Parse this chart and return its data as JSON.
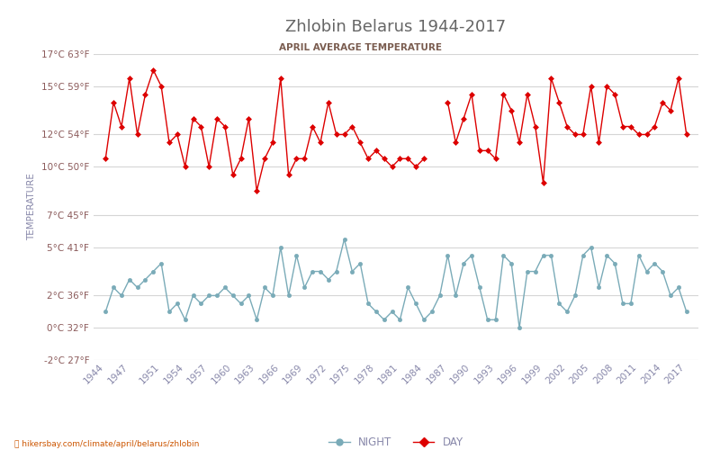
{
  "title": "Zhlobin Belarus 1944-2017",
  "subtitle": "APRIL AVERAGE TEMPERATURE",
  "ylabel": "TEMPERATURE",
  "footer": "hikersbay.com/climate/april/belarus/zhlobin",
  "years": [
    1944,
    1945,
    1946,
    1947,
    1948,
    1949,
    1950,
    1951,
    1952,
    1953,
    1954,
    1955,
    1956,
    1957,
    1958,
    1959,
    1960,
    1961,
    1962,
    1963,
    1964,
    1965,
    1966,
    1967,
    1968,
    1969,
    1970,
    1971,
    1972,
    1973,
    1974,
    1975,
    1976,
    1977,
    1978,
    1979,
    1980,
    1981,
    1982,
    1983,
    1984,
    1985,
    1986,
    1987,
    1988,
    1989,
    1990,
    1991,
    1992,
    1993,
    1994,
    1995,
    1996,
    1997,
    1998,
    1999,
    2000,
    2001,
    2002,
    2003,
    2004,
    2005,
    2006,
    2007,
    2008,
    2009,
    2010,
    2011,
    2012,
    2013,
    2014,
    2015,
    2016,
    2017
  ],
  "day": [
    10.5,
    14.0,
    12.5,
    15.5,
    12.0,
    14.5,
    16.0,
    15.0,
    11.5,
    12.0,
    10.0,
    13.0,
    12.5,
    10.0,
    13.0,
    12.5,
    9.5,
    10.5,
    13.0,
    8.5,
    10.5,
    11.5,
    15.5,
    9.5,
    10.5,
    10.5,
    12.5,
    11.5,
    14.0,
    12.0,
    12.0,
    12.5,
    11.5,
    10.5,
    11.0,
    10.5,
    10.0,
    10.5,
    10.5,
    10.0,
    10.5,
    null,
    null,
    14.0,
    11.5,
    13.0,
    14.5,
    11.0,
    11.0,
    10.5,
    14.5,
    13.5,
    11.5,
    14.5,
    12.5,
    9.0,
    15.5,
    14.0,
    12.5,
    12.0,
    12.0,
    15.0,
    11.5,
    15.0,
    14.5,
    12.5,
    12.5,
    12.0,
    12.0,
    12.5,
    14.0,
    13.5,
    15.5,
    12.0
  ],
  "night": [
    1.0,
    2.5,
    2.0,
    3.0,
    2.5,
    3.0,
    3.5,
    4.0,
    1.0,
    1.5,
    0.5,
    2.0,
    1.5,
    2.0,
    2.0,
    2.5,
    2.0,
    1.5,
    2.0,
    0.5,
    2.5,
    2.0,
    5.0,
    2.0,
    4.5,
    2.5,
    3.5,
    3.5,
    3.0,
    3.5,
    5.5,
    3.5,
    4.0,
    1.5,
    1.0,
    0.5,
    1.0,
    0.5,
    2.5,
    1.5,
    0.5,
    1.0,
    2.0,
    4.5,
    2.0,
    4.0,
    4.5,
    2.5,
    0.5,
    0.5,
    4.5,
    4.0,
    0.0,
    3.5,
    3.5,
    4.5,
    4.5,
    1.5,
    1.0,
    2.0,
    4.5,
    5.0,
    2.5,
    4.5,
    4.0,
    1.5,
    1.5,
    4.5,
    3.5,
    4.0,
    3.5,
    2.0,
    2.5,
    1.0
  ],
  "day_color": "#dd0000",
  "night_color": "#7aabb8",
  "title_color": "#666666",
  "subtitle_color": "#7a5c4f",
  "axis_label_color": "#8888aa",
  "tick_color": "#8B5a5a",
  "grid_color": "#d5d5d5",
  "background_color": "#ffffff",
  "ylim_min": -2,
  "ylim_max": 17,
  "yticks_c": [
    -2,
    0,
    2,
    5,
    7,
    10,
    12,
    15,
    17
  ],
  "yticks_f": [
    27,
    32,
    36,
    41,
    45,
    50,
    54,
    59,
    63
  ],
  "xtick_years": [
    1944,
    1947,
    1951,
    1954,
    1957,
    1960,
    1963,
    1966,
    1969,
    1972,
    1975,
    1978,
    1981,
    1984,
    1987,
    1990,
    1993,
    1996,
    1999,
    2002,
    2005,
    2008,
    2011,
    2014,
    2017
  ]
}
